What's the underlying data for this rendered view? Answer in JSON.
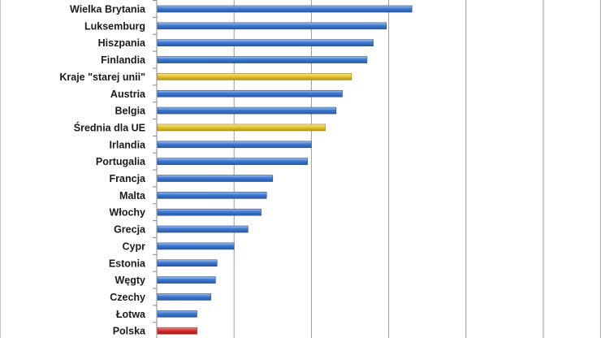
{
  "chart_data": {
    "type": "bar",
    "orientation": "horizontal",
    "categories": [
      "Wielka Brytania",
      "Luksemburg",
      "Hiszpania",
      "Finlandia",
      "Kraje \"starej unii\"",
      "Austria",
      "Belgia",
      "Średnia dla UE",
      "Irlandia",
      "Portugalia",
      "Francja",
      "Malta",
      "Włochy",
      "Grecja",
      "Cypr",
      "Estonia",
      "Węgty",
      "Czechy",
      "Łotwa",
      "Polska"
    ],
    "values": [
      33.0,
      29.7,
      28.0,
      27.2,
      25.2,
      24.0,
      23.2,
      21.8,
      20.0,
      19.5,
      15.0,
      14.2,
      13.5,
      11.8,
      10.0,
      7.8,
      7.6,
      7.0,
      5.2,
      5.2
    ],
    "colors": [
      "#3b78d4",
      "#3b78d4",
      "#3b78d4",
      "#3b78d4",
      "#e8c52a",
      "#3b78d4",
      "#3b78d4",
      "#e8c52a",
      "#3b78d4",
      "#3b78d4",
      "#3b78d4",
      "#3b78d4",
      "#3b78d4",
      "#3b78d4",
      "#3b78d4",
      "#3b78d4",
      "#3b78d4",
      "#3b78d4",
      "#3b78d4",
      "#d92b2b"
    ],
    "title": "",
    "xlabel": "",
    "ylabel": "",
    "xlim": [
      0,
      60
    ],
    "x_gridlines": [
      10,
      20,
      30,
      40,
      50,
      60
    ],
    "grid": true,
    "legend": "none"
  }
}
